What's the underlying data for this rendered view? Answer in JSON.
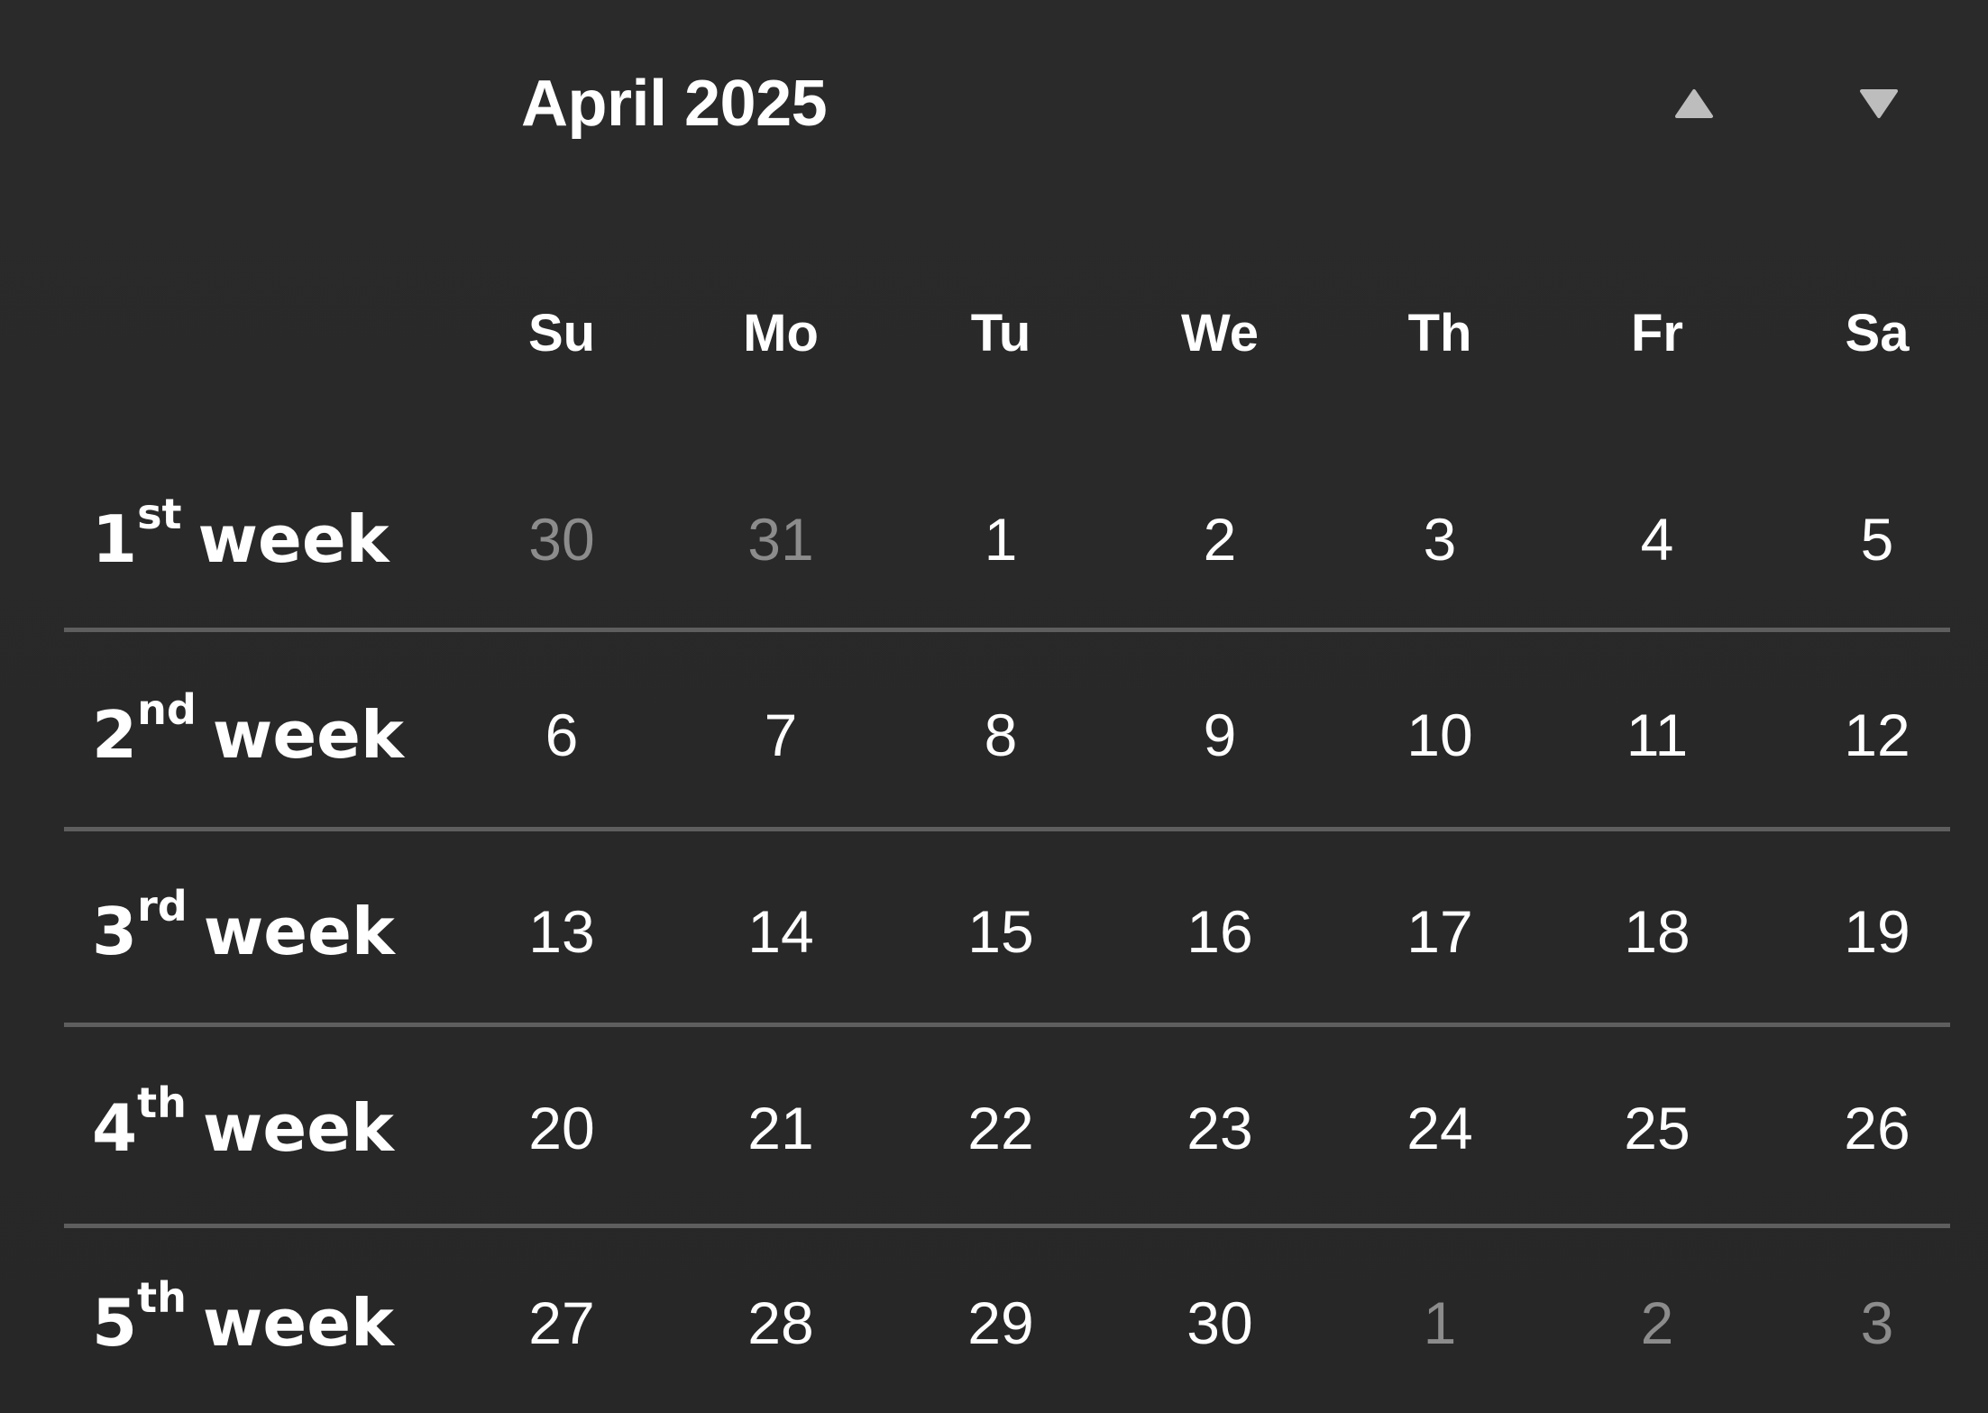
{
  "calendar": {
    "month_title": "April 2025",
    "prev_icon": "triangle-up-icon",
    "next_icon": "triangle-down-icon",
    "day_headers": [
      "Su",
      "Mo",
      "Tu",
      "We",
      "Th",
      "Fr",
      "Sa"
    ],
    "weeks": [
      {
        "ordinal": "1",
        "suffix": "st",
        "word": "week",
        "days": [
          {
            "d": "30",
            "muted": true
          },
          {
            "d": "31",
            "muted": true
          },
          {
            "d": "1"
          },
          {
            "d": "2"
          },
          {
            "d": "3"
          },
          {
            "d": "4"
          },
          {
            "d": "5"
          }
        ]
      },
      {
        "ordinal": "2",
        "suffix": "nd",
        "word": "week",
        "days": [
          {
            "d": "6"
          },
          {
            "d": "7"
          },
          {
            "d": "8"
          },
          {
            "d": "9"
          },
          {
            "d": "10"
          },
          {
            "d": "11"
          },
          {
            "d": "12"
          }
        ]
      },
      {
        "ordinal": "3",
        "suffix": "rd",
        "word": "week",
        "days": [
          {
            "d": "13"
          },
          {
            "d": "14"
          },
          {
            "d": "15"
          },
          {
            "d": "16"
          },
          {
            "d": "17"
          },
          {
            "d": "18"
          },
          {
            "d": "19"
          }
        ]
      },
      {
        "ordinal": "4",
        "suffix": "th",
        "word": "week",
        "days": [
          {
            "d": "20"
          },
          {
            "d": "21"
          },
          {
            "d": "22"
          },
          {
            "d": "23"
          },
          {
            "d": "24"
          },
          {
            "d": "25"
          },
          {
            "d": "26"
          }
        ]
      },
      {
        "ordinal": "5",
        "suffix": "th",
        "word": "week",
        "days": [
          {
            "d": "27"
          },
          {
            "d": "28"
          },
          {
            "d": "29"
          },
          {
            "d": "30"
          },
          {
            "d": "1",
            "muted": true
          },
          {
            "d": "2",
            "muted": true
          },
          {
            "d": "3",
            "muted": true
          }
        ]
      }
    ]
  },
  "colors": {
    "background": "#282828",
    "text": "#ffffff",
    "muted_text": "#8c8c8c",
    "divider": "#5e5e5e",
    "nav_icon": "#bdbdbd"
  }
}
